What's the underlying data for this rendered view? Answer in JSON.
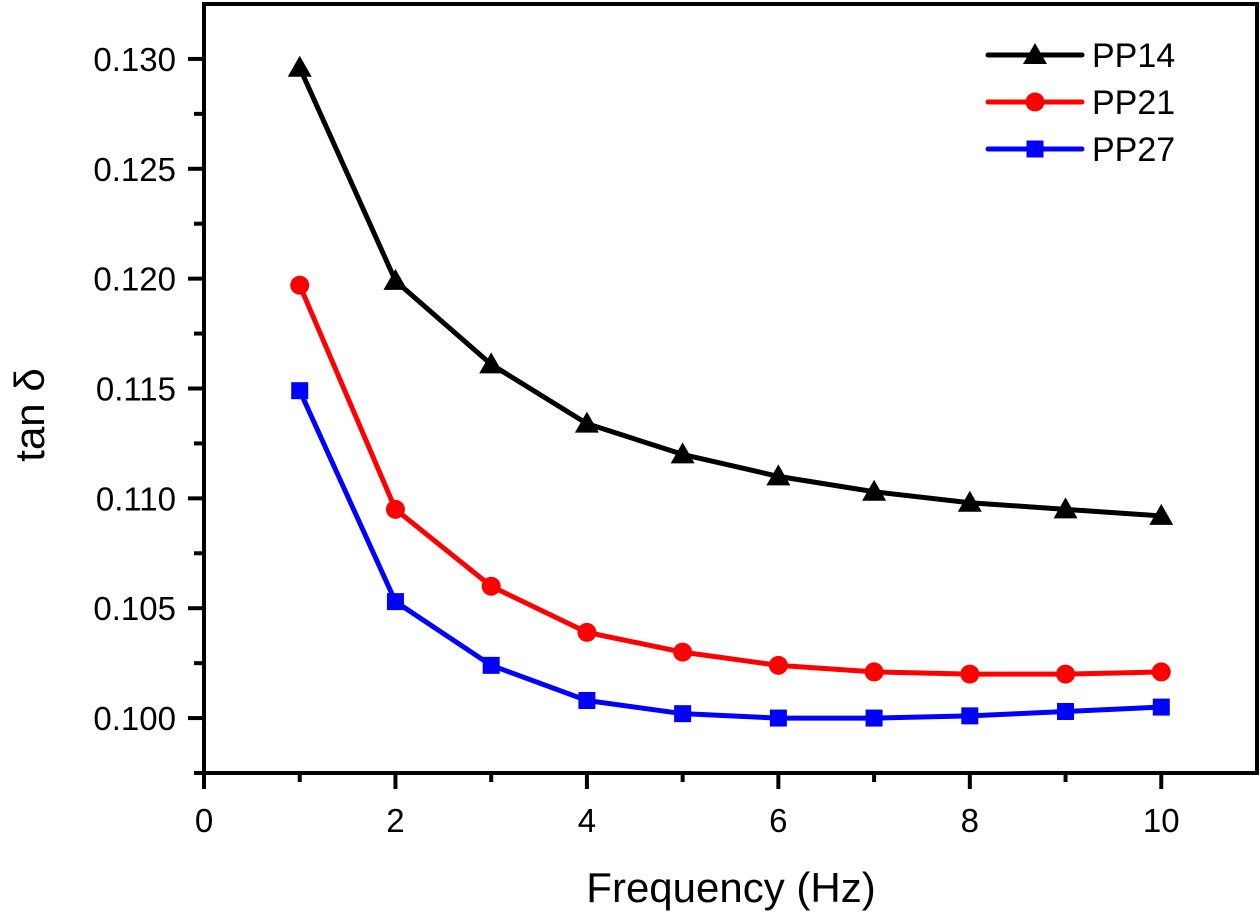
{
  "chart_data": {
    "type": "line",
    "title": "",
    "xlabel": "Frequency (Hz)",
    "ylabel": "tan δ",
    "xlim": [
      0,
      11
    ],
    "ylim": [
      0.0975,
      0.1325
    ],
    "xticks": [
      0,
      2,
      4,
      6,
      8,
      10
    ],
    "xtick_labels": [
      "0",
      "2",
      "4",
      "6",
      "8",
      "10"
    ],
    "x_minor_ticks": [
      1,
      3,
      5,
      7,
      9
    ],
    "yticks": [
      0.1,
      0.105,
      0.11,
      0.115,
      0.12,
      0.125,
      0.13
    ],
    "ytick_labels": [
      "0.100",
      "0.105",
      "0.110",
      "0.115",
      "0.120",
      "0.125",
      "0.130"
    ],
    "y_minor_ticks": [
      0.0975,
      0.1025,
      0.1075,
      0.1125,
      0.1175,
      0.1225,
      0.1275
    ],
    "grid": false,
    "legend_position": "top-right",
    "x": [
      1,
      2,
      3,
      4,
      5,
      6,
      7,
      8,
      9,
      10
    ],
    "series": [
      {
        "name": "PP14",
        "color": "#000000",
        "marker": "triangle",
        "values": [
          0.1296,
          0.1199,
          0.1161,
          0.1134,
          0.112,
          0.111,
          0.1103,
          0.1098,
          0.1095,
          0.1092
        ]
      },
      {
        "name": "PP21",
        "color": "#ff0000",
        "marker": "circle",
        "values": [
          0.1197,
          0.1095,
          0.106,
          0.1039,
          0.103,
          0.1024,
          0.1021,
          0.102,
          0.102,
          0.1021
        ]
      },
      {
        "name": "PP27",
        "color": "#0000ff",
        "marker": "square",
        "values": [
          0.1149,
          0.1053,
          0.1024,
          0.1008,
          0.1002,
          0.1,
          0.1,
          0.1001,
          0.1003,
          0.1005
        ]
      }
    ]
  }
}
